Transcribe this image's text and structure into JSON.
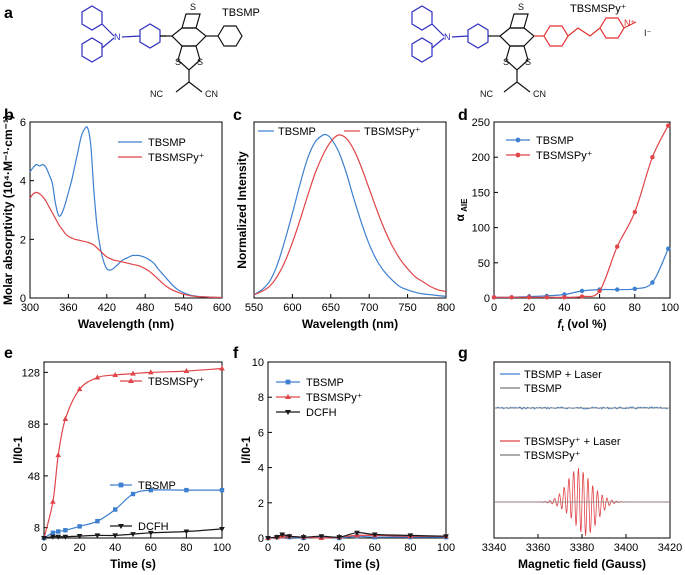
{
  "panels": {
    "a": {
      "label": "a",
      "molecules": [
        {
          "name": "TBSMP"
        },
        {
          "name": "TBSMSPy⁺"
        }
      ],
      "chem_text": {
        "N": "N",
        "S": "S",
        "NC": "NC",
        "CN": "CN",
        "Nplus": "N⁺",
        "I": "I⁻"
      }
    },
    "b": {
      "label": "b"
    },
    "c": {
      "label": "c"
    },
    "d": {
      "label": "d"
    },
    "e": {
      "label": "e"
    },
    "f": {
      "label": "f"
    },
    "g": {
      "label": "g"
    }
  },
  "colors": {
    "blue": "#3d7fd0",
    "red": "#e0454a",
    "black": "#1a1a1a",
    "grey": "#7a7a7a",
    "mol_blue": "#2f2fbf",
    "mol_red": "#e03030"
  },
  "chart_data": [
    {
      "id": "b",
      "type": "line",
      "xlabel": "Wavelength (nm)",
      "ylabel": "Molar absorptivity (10⁴·M⁻¹·cm⁻¹)",
      "xlim": [
        300,
        600
      ],
      "ylim": [
        0,
        6
      ],
      "xticks": [
        300,
        360,
        420,
        480,
        540,
        600
      ],
      "yticks": [
        0,
        2,
        4,
        6
      ],
      "legend": "top-right",
      "series": [
        {
          "name": "TBSMP",
          "color": "blue",
          "x": [
            300,
            305,
            310,
            315,
            320,
            325,
            330,
            335,
            340,
            345,
            350,
            355,
            360,
            365,
            370,
            375,
            380,
            385,
            390,
            395,
            400,
            405,
            410,
            415,
            420,
            425,
            430,
            435,
            440,
            445,
            450,
            455,
            460,
            465,
            470,
            475,
            480,
            485,
            490,
            495,
            500,
            510,
            520,
            530,
            540,
            550,
            560,
            570,
            580,
            590,
            600
          ],
          "y": [
            4.3,
            4.45,
            4.55,
            4.5,
            4.55,
            4.45,
            4.2,
            3.9,
            3.2,
            2.8,
            2.9,
            3.2,
            3.6,
            4.0,
            4.5,
            5.0,
            5.5,
            5.75,
            5.8,
            5.2,
            3.6,
            2.4,
            1.7,
            1.25,
            1.0,
            0.95,
            1.0,
            1.1,
            1.2,
            1.3,
            1.35,
            1.4,
            1.45,
            1.45,
            1.45,
            1.42,
            1.38,
            1.32,
            1.25,
            1.15,
            1.0,
            0.75,
            0.5,
            0.3,
            0.18,
            0.1,
            0.06,
            0.04,
            0.03,
            0.02,
            0.02
          ]
        },
        {
          "name": "TBSMSPy⁺",
          "color": "red",
          "x": [
            300,
            305,
            310,
            315,
            320,
            325,
            330,
            335,
            340,
            345,
            350,
            355,
            360,
            365,
            370,
            375,
            380,
            390,
            400,
            410,
            420,
            430,
            440,
            450,
            460,
            470,
            480,
            490,
            500,
            510,
            520,
            530,
            540,
            550,
            560,
            570,
            580,
            590,
            600
          ],
          "y": [
            3.4,
            3.55,
            3.6,
            3.55,
            3.45,
            3.3,
            3.1,
            2.9,
            2.7,
            2.5,
            2.35,
            2.2,
            2.1,
            2.05,
            2.0,
            1.98,
            1.95,
            1.9,
            1.8,
            1.6,
            1.4,
            1.3,
            1.25,
            1.2,
            1.15,
            1.1,
            1.0,
            0.85,
            0.65,
            0.45,
            0.3,
            0.2,
            0.13,
            0.08,
            0.05,
            0.04,
            0.03,
            0.02,
            0.02
          ]
        }
      ]
    },
    {
      "id": "c",
      "type": "line",
      "xlabel": "Wavelength (nm)",
      "ylabel": "Normalized Intensity",
      "xlim": [
        550,
        800
      ],
      "ylim": [
        0,
        1.08
      ],
      "xticks": [
        550,
        600,
        650,
        700,
        750,
        800
      ],
      "yticks": [],
      "legend": "top",
      "series": [
        {
          "name": "TBSMP",
          "color": "blue",
          "x": [
            550,
            560,
            570,
            580,
            590,
            600,
            610,
            620,
            630,
            640,
            645,
            650,
            660,
            670,
            680,
            690,
            700,
            710,
            720,
            730,
            740,
            750,
            760,
            770,
            780,
            790,
            800
          ],
          "y": [
            0.02,
            0.05,
            0.1,
            0.2,
            0.35,
            0.52,
            0.7,
            0.86,
            0.96,
            1.0,
            1.0,
            0.98,
            0.9,
            0.77,
            0.61,
            0.46,
            0.33,
            0.23,
            0.16,
            0.11,
            0.07,
            0.05,
            0.035,
            0.025,
            0.02,
            0.015,
            0.01
          ]
        },
        {
          "name": "TBSMSPy⁺",
          "color": "red",
          "x": [
            550,
            560,
            570,
            580,
            590,
            600,
            610,
            620,
            630,
            640,
            650,
            660,
            670,
            680,
            690,
            700,
            710,
            720,
            730,
            740,
            750,
            760,
            770,
            780,
            790,
            800
          ],
          "y": [
            0.02,
            0.04,
            0.07,
            0.13,
            0.22,
            0.34,
            0.48,
            0.63,
            0.77,
            0.88,
            0.96,
            1.0,
            0.98,
            0.91,
            0.8,
            0.67,
            0.54,
            0.42,
            0.32,
            0.24,
            0.18,
            0.13,
            0.1,
            0.07,
            0.05,
            0.04
          ]
        }
      ]
    },
    {
      "id": "d",
      "type": "line",
      "xlabel": "ft (vol %)",
      "ylabel": "α AIE",
      "xlim": [
        0,
        100
      ],
      "ylim": [
        0,
        250
      ],
      "xticks": [
        0,
        20,
        40,
        60,
        80,
        100
      ],
      "yticks": [
        0,
        50,
        100,
        150,
        200,
        250
      ],
      "legend": "top-left",
      "series": [
        {
          "name": "TBSMP",
          "color": "blue",
          "x": [
            0,
            10,
            20,
            30,
            40,
            50,
            60,
            70,
            80,
            90,
            99
          ],
          "y": [
            1,
            1,
            2,
            3,
            5,
            10,
            12,
            12,
            13,
            22,
            70
          ]
        },
        {
          "name": "TBSMSPy⁺",
          "color": "red",
          "x": [
            0,
            10,
            20,
            30,
            40,
            50,
            60,
            70,
            80,
            90,
            99
          ],
          "y": [
            1,
            1,
            1,
            1,
            1,
            2,
            10,
            73,
            122,
            200,
            245
          ]
        }
      ]
    },
    {
      "id": "e",
      "type": "line",
      "xlabel": "Time (s)",
      "ylabel": "I/I0-1",
      "xlim": [
        0,
        100
      ],
      "ylim": [
        0,
        136
      ],
      "xticks": [
        0,
        20,
        40,
        60,
        80,
        100
      ],
      "yticks": [
        8,
        48,
        88,
        128
      ],
      "series": [
        {
          "name": "TBSMSPy⁺",
          "color": "red",
          "x": [
            0,
            5,
            8,
            12,
            20,
            30,
            40,
            50,
            60,
            80,
            100
          ],
          "y": [
            0,
            28,
            64,
            92,
            115,
            124,
            126,
            127,
            128,
            129,
            131
          ]
        },
        {
          "name": "TBSMP",
          "color": "blue",
          "x": [
            0,
            5,
            8,
            12,
            20,
            30,
            40,
            50,
            60,
            80,
            100
          ],
          "y": [
            0,
            4,
            5,
            6,
            9,
            13,
            22,
            34,
            37,
            37,
            37
          ]
        },
        {
          "name": "DCFH",
          "color": "black",
          "x": [
            0,
            5,
            8,
            12,
            20,
            30,
            40,
            50,
            60,
            80,
            100
          ],
          "y": [
            0,
            1,
            1,
            1,
            1.5,
            2,
            2,
            3,
            4,
            5,
            7
          ]
        }
      ]
    },
    {
      "id": "f",
      "type": "line",
      "xlabel": "Time (s)",
      "ylabel": "I/I0-1",
      "xlim": [
        0,
        100
      ],
      "ylim": [
        0,
        10
      ],
      "xticks": [
        0,
        20,
        40,
        60,
        80,
        100
      ],
      "yticks": [
        0,
        2,
        4,
        6,
        8,
        10
      ],
      "legend": "top-left",
      "series": [
        {
          "name": "TBSMP",
          "color": "blue",
          "x": [
            0,
            5,
            8,
            12,
            20,
            30,
            40,
            50,
            60,
            80,
            100
          ],
          "y": [
            0,
            0.05,
            0.1,
            0.05,
            0,
            0.05,
            0,
            0.1,
            0.05,
            0.05,
            0.05
          ]
        },
        {
          "name": "TBSMSPy⁺",
          "color": "red",
          "x": [
            0,
            5,
            8,
            12,
            20,
            30,
            40,
            50,
            60,
            80,
            100
          ],
          "y": [
            0,
            0.05,
            0.1,
            0.1,
            0.05,
            0,
            0.05,
            0.15,
            0.15,
            0.1,
            0.1
          ]
        },
        {
          "name": "DCFH",
          "color": "black",
          "x": [
            0,
            5,
            8,
            12,
            20,
            30,
            40,
            50,
            60,
            80,
            100
          ],
          "y": [
            0,
            0.05,
            0.2,
            0.1,
            0.05,
            0.1,
            0.05,
            0.3,
            0.2,
            0.15,
            0.1
          ]
        }
      ]
    },
    {
      "id": "g",
      "type": "line",
      "xlabel": "Magnetic field (Gauss)",
      "xlim": [
        3340,
        3420
      ],
      "xticks": [
        3340,
        3360,
        3380,
        3400,
        3420
      ],
      "series": [
        {
          "name": "TBSMP + Laser",
          "color": "blue"
        },
        {
          "name": "TBSMP",
          "color": "grey"
        },
        {
          "name": "TBSMSPy⁺ + Laser",
          "color": "red"
        },
        {
          "name": "TBSMSPy⁺",
          "color": "grey"
        }
      ],
      "signal_center": 3380,
      "signal_halfwidth": 9
    }
  ]
}
